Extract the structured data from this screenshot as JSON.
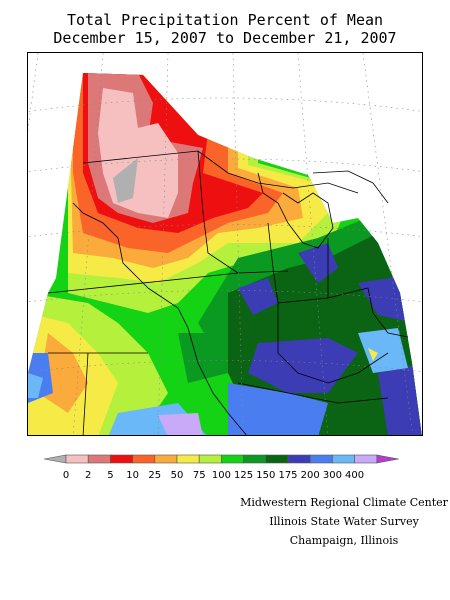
{
  "title": {
    "line1": "Total Precipitation Percent of Mean",
    "line2": "December 15, 2007 to December 21, 2007"
  },
  "legend": {
    "labels": [
      "0",
      "2",
      "5",
      "10",
      "25",
      "50",
      "75",
      "100",
      "125",
      "150",
      "175",
      "200",
      "300",
      "400"
    ],
    "colors": [
      "#f6c0c0",
      "#dc7878",
      "#ee1010",
      "#fa6428",
      "#fbaa3c",
      "#f5ea46",
      "#b4f03c",
      "#14d214",
      "#0a9a22",
      "#0a6414",
      "#3c3cb4",
      "#4a7ef0",
      "#6ab8f8",
      "#c8aaf8"
    ],
    "under_color": "#b0b0b0",
    "over_color": "#b43cd2"
  },
  "credits": {
    "line1": "Midwestern Regional Climate Center",
    "line2": "Illinois State Water Survey",
    "line3": "Champaign, Illinois"
  }
}
